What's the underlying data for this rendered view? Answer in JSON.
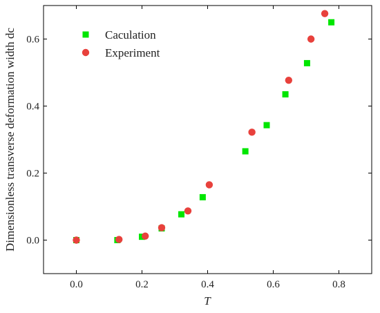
{
  "chart_data": {
    "type": "scatter",
    "xlabel": "T",
    "ylabel": "Dimensionless transverse deformation width dc",
    "xlim": [
      -0.1,
      0.9
    ],
    "ylim": [
      -0.1,
      0.7
    ],
    "xticks": [
      0.0,
      0.2,
      0.4,
      0.6,
      0.8
    ],
    "xtick_labels": [
      "0.0",
      "0.2",
      "0.4",
      "0.6",
      "0.8"
    ],
    "yticks": [
      0.0,
      0.2,
      0.4,
      0.6
    ],
    "ytick_labels": [
      "0.0",
      "0.2",
      "0.4",
      "0.6"
    ],
    "grid": false,
    "legend_position": "top-left",
    "series": [
      {
        "name": "Caculation",
        "marker": "square",
        "color": "#00e600",
        "points": [
          [
            0.0,
            0.0
          ],
          [
            0.125,
            0.0
          ],
          [
            0.2,
            0.01
          ],
          [
            0.26,
            0.035
          ],
          [
            0.32,
            0.077
          ],
          [
            0.385,
            0.128
          ],
          [
            0.515,
            0.265
          ],
          [
            0.58,
            0.343
          ],
          [
            0.637,
            0.435
          ],
          [
            0.703,
            0.528
          ],
          [
            0.777,
            0.65
          ]
        ]
      },
      {
        "name": "Experiment",
        "marker": "circle",
        "color": "#e8413c",
        "points": [
          [
            0.0,
            0.0
          ],
          [
            0.13,
            0.002
          ],
          [
            0.21,
            0.012
          ],
          [
            0.26,
            0.037
          ],
          [
            0.34,
            0.087
          ],
          [
            0.405,
            0.165
          ],
          [
            0.535,
            0.322
          ],
          [
            0.647,
            0.477
          ],
          [
            0.715,
            0.6
          ],
          [
            0.757,
            0.676
          ]
        ]
      }
    ]
  }
}
